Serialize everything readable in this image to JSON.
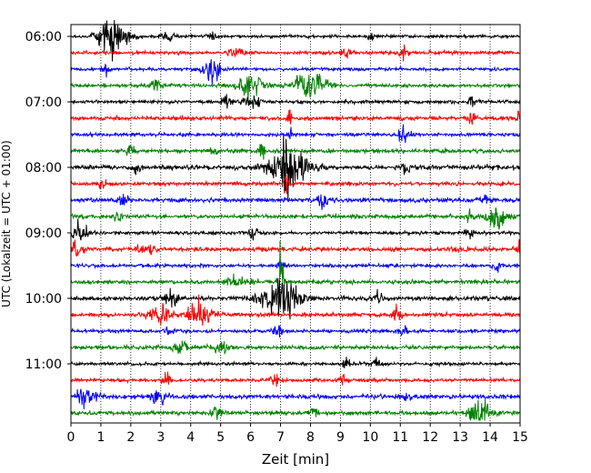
{
  "chart_data": {
    "type": "line",
    "xlabel": "Zeit  [min]",
    "ylabel": "UTC (Lokalzeit = UTC + 01:00)",
    "xlim": [
      0,
      15
    ],
    "x_ticks": [
      "0",
      "1",
      "2",
      "3",
      "4",
      "5",
      "6",
      "7",
      "8",
      "9",
      "10",
      "11",
      "12",
      "13",
      "14",
      "15"
    ],
    "y_ticks": [
      "06:00",
      "07:00",
      "08:00",
      "09:00",
      "10:00",
      "11:00"
    ],
    "grid": "vertical dotted lines at each minute",
    "trace_minutes": 15,
    "trace_colors": [
      "#000000",
      "#ff0000",
      "#0000ff",
      "#008000"
    ],
    "traces": [
      {
        "start": "06:00",
        "noise": 0.8,
        "events": [
          [
            1.4,
            9,
            0.35
          ],
          [
            1.2,
            5,
            0.2
          ],
          [
            3.2,
            3,
            0.15
          ],
          [
            4.7,
            3,
            0.1
          ],
          [
            10,
            4,
            0.05
          ]
        ]
      },
      {
        "start": "06:15",
        "noise": 0.9,
        "events": [
          [
            5.5,
            2.5,
            0.15
          ],
          [
            9.2,
            3.5,
            0.1
          ],
          [
            11.1,
            2.5,
            0.1
          ]
        ]
      },
      {
        "start": "06:30",
        "noise": 0.8,
        "events": [
          [
            4.7,
            7,
            0.2
          ],
          [
            1.2,
            2.5,
            0.1
          ]
        ]
      },
      {
        "start": "06:45",
        "noise": 0.9,
        "events": [
          [
            6,
            6,
            0.3
          ],
          [
            8,
            8,
            0.35
          ],
          [
            2.8,
            2.5,
            0.15
          ]
        ]
      },
      {
        "start": "07:00",
        "noise": 0.9,
        "events": [
          [
            5.2,
            4,
            0.1
          ],
          [
            6,
            4,
            0.2
          ],
          [
            13.4,
            5,
            0.08
          ]
        ]
      },
      {
        "start": "07:15",
        "noise": 1.0,
        "events": [
          [
            7.3,
            6,
            0.05
          ],
          [
            13.4,
            4,
            0.1
          ],
          [
            15,
            4,
            0.08
          ]
        ]
      },
      {
        "start": "07:30",
        "noise": 0.9,
        "events": [
          [
            11.1,
            4,
            0.15
          ],
          [
            7.3,
            4,
            0.05
          ]
        ]
      },
      {
        "start": "07:45",
        "noise": 1.0,
        "events": [
          [
            6.4,
            5,
            0.08
          ],
          [
            2,
            3,
            0.1
          ],
          [
            4.8,
            3,
            0.08
          ]
        ]
      },
      {
        "start": "08:00",
        "noise": 1.2,
        "events": [
          [
            7.3,
            10,
            0.5
          ],
          [
            7.2,
            26,
            0.08
          ],
          [
            2.2,
            3,
            0.08
          ],
          [
            11.2,
            3,
            0.1
          ]
        ]
      },
      {
        "start": "08:15",
        "noise": 1.0,
        "events": [
          [
            7.2,
            7,
            0.05
          ],
          [
            1,
            3,
            0.1
          ]
        ]
      },
      {
        "start": "08:30",
        "noise": 1.1,
        "events": [
          [
            1.8,
            4,
            0.1
          ],
          [
            8.4,
            4,
            0.1
          ],
          [
            13.9,
            3,
            0.1
          ]
        ]
      },
      {
        "start": "08:45",
        "noise": 1.0,
        "events": [
          [
            1.6,
            3,
            0.1
          ],
          [
            14.2,
            6,
            0.25
          ],
          [
            13.3,
            3,
            0.1
          ]
        ]
      },
      {
        "start": "09:00",
        "noise": 0.9,
        "events": [
          [
            0.3,
            5,
            0.2
          ],
          [
            6.1,
            3,
            0.1
          ],
          [
            13.3,
            3,
            0.1
          ]
        ]
      },
      {
        "start": "09:15",
        "noise": 1.1,
        "events": [
          [
            0.2,
            4,
            0.15
          ],
          [
            15,
            4,
            0.1
          ],
          [
            2.5,
            3,
            0.2
          ]
        ]
      },
      {
        "start": "09:30",
        "noise": 0.9,
        "events": [
          [
            14.2,
            4,
            0.1
          ],
          [
            7,
            3,
            0.1
          ]
        ]
      },
      {
        "start": "09:45",
        "noise": 1.0,
        "events": [
          [
            7,
            17,
            0.06
          ],
          [
            5.5,
            4,
            0.2
          ],
          [
            6.1,
            3,
            0.1
          ]
        ]
      },
      {
        "start": "10:00",
        "noise": 1.1,
        "events": [
          [
            7,
            10,
            0.45
          ],
          [
            3.4,
            5,
            0.15
          ],
          [
            10.3,
            3,
            0.1
          ]
        ]
      },
      {
        "start": "10:15",
        "noise": 1.0,
        "events": [
          [
            4.3,
            6,
            0.3
          ],
          [
            3,
            5,
            0.25
          ],
          [
            10.9,
            4,
            0.1
          ]
        ]
      },
      {
        "start": "10:30",
        "noise": 0.9,
        "events": [
          [
            6.9,
            5,
            0.1
          ],
          [
            3.3,
            3,
            0.1
          ],
          [
            11.1,
            3,
            0.1
          ]
        ]
      },
      {
        "start": "10:45",
        "noise": 1.0,
        "events": [
          [
            3.7,
            3,
            0.2
          ],
          [
            5,
            3,
            0.15
          ]
        ]
      },
      {
        "start": "11:00",
        "noise": 0.8,
        "events": [
          [
            9.2,
            3,
            0.1
          ],
          [
            10.2,
            3,
            0.1
          ]
        ]
      },
      {
        "start": "11:15",
        "noise": 0.9,
        "events": [
          [
            3.2,
            4,
            0.1
          ],
          [
            6.8,
            4,
            0.1
          ],
          [
            9.1,
            3,
            0.1
          ]
        ]
      },
      {
        "start": "11:30",
        "noise": 1.1,
        "events": [
          [
            0.5,
            6,
            0.2
          ],
          [
            3,
            4,
            0.2
          ],
          [
            11.2,
            3,
            0.1
          ]
        ]
      },
      {
        "start": "11:45",
        "noise": 1.0,
        "events": [
          [
            13.7,
            7,
            0.25
          ],
          [
            4.9,
            3,
            0.15
          ],
          [
            8.1,
            3,
            0.1
          ]
        ]
      }
    ]
  }
}
